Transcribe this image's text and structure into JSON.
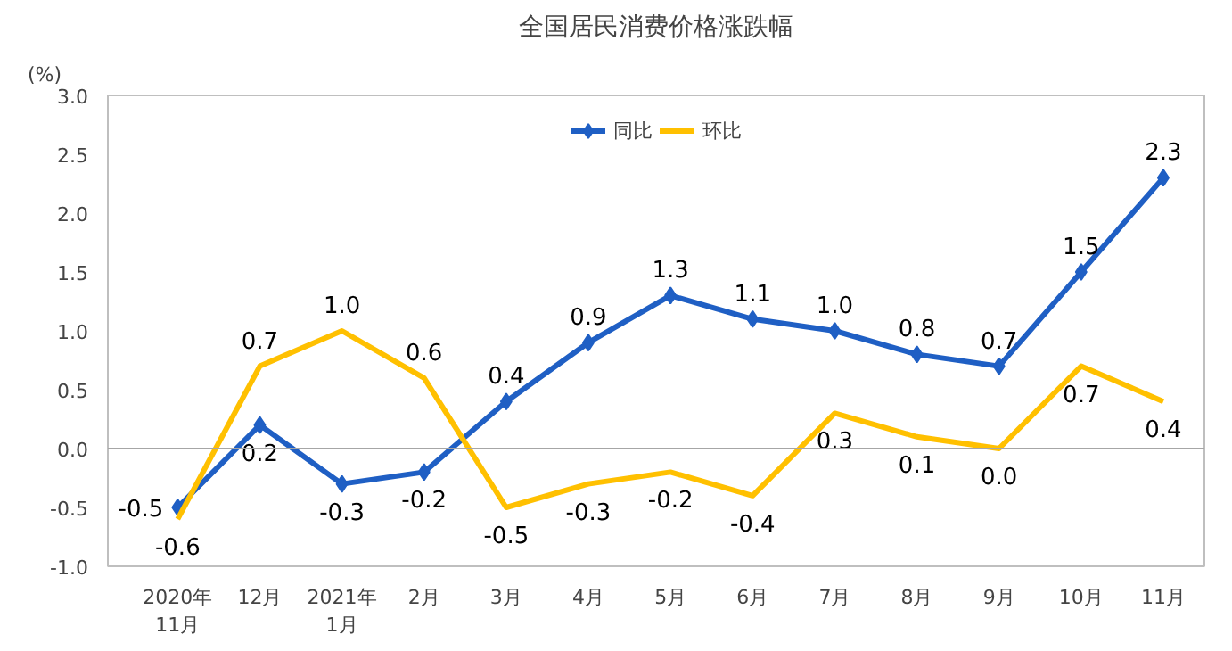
{
  "chart_data": {
    "type": "line",
    "title": "全国居民消费价格涨跌幅",
    "ylabel": "(%)",
    "categories": [
      "2020年\n11月",
      "12月",
      "2021年\n1月",
      "2月",
      "3月",
      "4月",
      "5月",
      "6月",
      "7月",
      "8月",
      "9月",
      "10月",
      "11月"
    ],
    "series": [
      {
        "name": "同比",
        "color": "#1f5fc4",
        "marker": "diamond",
        "values": [
          -0.5,
          0.2,
          -0.3,
          -0.2,
          0.4,
          0.9,
          1.3,
          1.1,
          1.0,
          0.8,
          0.7,
          1.5,
          2.3
        ],
        "value_labels": [
          "-0.5",
          "0.2",
          "-0.3",
          "-0.2",
          "0.4",
          "0.9",
          "1.3",
          "1.1",
          "1.0",
          "0.8",
          "0.7",
          "1.5",
          "2.3"
        ]
      },
      {
        "name": "环比",
        "color": "#ffc000",
        "marker": "none",
        "values": [
          -0.6,
          0.7,
          1.0,
          0.6,
          -0.5,
          -0.3,
          -0.2,
          -0.4,
          0.3,
          0.1,
          0.0,
          0.7,
          0.4
        ],
        "value_labels": [
          "-0.6",
          "0.7",
          "1.0",
          "0.6",
          "-0.5",
          "-0.3",
          "-0.2",
          "-0.4",
          "0.3",
          "0.1",
          "0.0",
          "0.7",
          "0.4"
        ]
      }
    ],
    "ylim": [
      -1,
      3
    ],
    "yticks": [
      {
        "value": -1,
        "label": "-1.0"
      },
      {
        "value": -0.5,
        "label": "-0.5"
      },
      {
        "value": 0,
        "label": "0.0"
      },
      {
        "value": 0.5,
        "label": "0.5"
      },
      {
        "value": 1,
        "label": "1.0"
      },
      {
        "value": 1.5,
        "label": "1.5"
      },
      {
        "value": 2,
        "label": "2.0"
      },
      {
        "value": 2.5,
        "label": "2.5"
      },
      {
        "value": 3,
        "label": "3.0"
      }
    ],
    "ref_lines": [
      {
        "axis": "y",
        "value": 0,
        "color": "#a6a6a6"
      }
    ],
    "grid": false,
    "legend": "top",
    "line_style": "solid"
  }
}
